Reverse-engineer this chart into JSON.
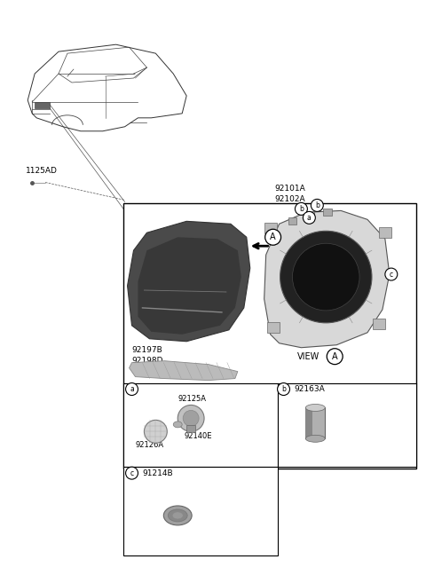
{
  "bg_color": "#ffffff",
  "fig_width": 4.8,
  "fig_height": 6.57,
  "dpi": 100,
  "car_color": "#444444",
  "headlamp_dark": "#555555",
  "headlamp_light": "#e0e0e0",
  "part_gray": "#999999",
  "part_light": "#cccccc",
  "box_edge": "#000000",
  "labels": {
    "l92101A": "92101A",
    "l92102A": "92102A",
    "l1125AD": "1125AD",
    "l92197B": "92197B",
    "l92198D": "92198D",
    "l92125A": "92125A",
    "l92140E": "92140E",
    "l92126A": "92126A",
    "l92163A": "92163A",
    "l91214B": "91214B",
    "lVIEW": "VIEW",
    "lA": "A",
    "la": "a",
    "lb": "b",
    "lc": "c"
  }
}
